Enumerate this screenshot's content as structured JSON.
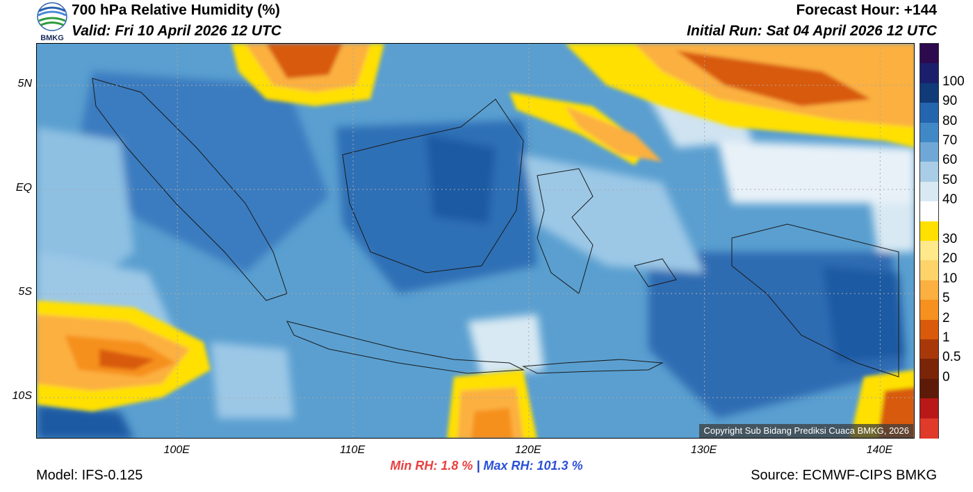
{
  "header": {
    "title": "700 hPa Relative Humidity (%)",
    "valid": "Valid: Fri 10 April 2026 12 UTC",
    "forecast_hour": "Forecast Hour: +144",
    "initial_run": "Initial Run: Sat 04 April 2026 12 UTC",
    "logo_text": "BMKG"
  },
  "map": {
    "lon_range": [
      92,
      142
    ],
    "lat_range": [
      -12,
      7
    ],
    "lat_ticks": [
      {
        "value": 5,
        "label": "5N"
      },
      {
        "value": 0,
        "label": "EQ"
      },
      {
        "value": -5,
        "label": "5S"
      },
      {
        "value": -10,
        "label": "10S"
      }
    ],
    "lon_ticks": [
      {
        "value": 100,
        "label": "100E"
      },
      {
        "value": 110,
        "label": "110E"
      },
      {
        "value": 120,
        "label": "120E"
      },
      {
        "value": 130,
        "label": "130E"
      },
      {
        "value": 140,
        "label": "140E"
      }
    ],
    "copyright": "Copyright Sub Bidang Prediksi Cuaca BMKG, 2026"
  },
  "colorbar": {
    "levels": [
      {
        "label": "",
        "color": "#2d0a4e"
      },
      {
        "label": "100",
        "color": "#1b1f6b"
      },
      {
        "label": "90",
        "color": "#103a78"
      },
      {
        "label": "80",
        "color": "#2565ad"
      },
      {
        "label": "70",
        "color": "#4189c6"
      },
      {
        "label": "60",
        "color": "#6fa8d6"
      },
      {
        "label": "50",
        "color": "#a9cde6"
      },
      {
        "label": "40",
        "color": "#d8e9f3"
      },
      {
        "label": "",
        "color": "#ffffff"
      },
      {
        "label": "30",
        "color": "#ffe000"
      },
      {
        "label": "20",
        "color": "#ffe98a"
      },
      {
        "label": "10",
        "color": "#fdd36a"
      },
      {
        "label": "5",
        "color": "#fbb040"
      },
      {
        "label": "2",
        "color": "#f6901e"
      },
      {
        "label": "1",
        "color": "#d85a0a"
      },
      {
        "label": "0.5",
        "color": "#a8380a"
      },
      {
        "label": "0",
        "color": "#7a2408"
      },
      {
        "label": "",
        "color": "#5e1a08"
      },
      {
        "label": "",
        "color": "#b81818"
      },
      {
        "label": "",
        "color": "#e03a2a"
      }
    ]
  },
  "stats": {
    "min_rh": "Min RH:   1.8 %",
    "separator": "|",
    "max_rh": "Max RH: 101.3 %"
  },
  "footer": {
    "model": "Model: IFS-0.125",
    "source": "Source: ECMWF-CIPS BMKG"
  }
}
